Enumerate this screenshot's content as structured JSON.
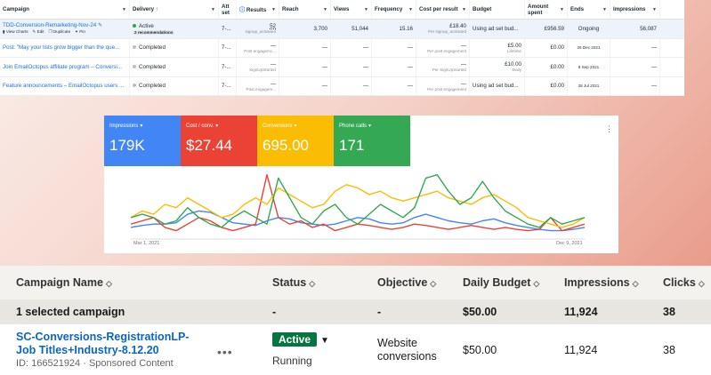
{
  "fb": {
    "headers": {
      "campaign": "Campaign",
      "delivery": "Delivery",
      "delivery_sort": "↑",
      "attribution": "Att set",
      "results": "Results",
      "reach": "Reach",
      "views": "Views",
      "frequency": "Frequency",
      "cost_per_result": "Cost per result",
      "budget": "Budget",
      "amount_spent": "Amount spent",
      "ends": "Ends",
      "impressions": "Impressions"
    },
    "rows": [
      {
        "name": "TDD-Conversion-Remarketing-Nov-24",
        "actions": [
          "View Charts",
          "Edit",
          "Duplicate",
          "Pin"
        ],
        "delivery": "Active",
        "recommendation": "2 recommendations",
        "attribution": "7-...",
        "results": "52",
        "results_sub": "signup_activated",
        "reach": "3,700",
        "views": "51,044",
        "frequency": "15.16",
        "cpr": "£18.40",
        "cpr_sub": "Per signup_activated",
        "budget": "Using ad set bud...",
        "budget_sub": "",
        "spent": "£956.59",
        "ends": "Ongoing",
        "impressions": "56,087"
      },
      {
        "name": "Post: \"May your lists grow bigger than the que...",
        "delivery": "Completed",
        "attribution": "7-...",
        "results": "—",
        "results_sub": "Post engagemc...",
        "reach": "—",
        "views": "—",
        "frequency": "—",
        "cpr": "—",
        "cpr_sub": "Per post engagement",
        "budget": "£5.00",
        "budget_sub": "Lifetime",
        "spent": "£0.00",
        "ends": "26 Dec 2021",
        "impressions": "—"
      },
      {
        "name": "Join EmailOctopus affiliate program – Conversi...",
        "delivery": "Completed",
        "attribution": "7-...",
        "results": "—",
        "results_sub": "SignUpStarted",
        "reach": "—",
        "views": "—",
        "frequency": "—",
        "cpr": "—",
        "cpr_sub": "Per SignUpStarted",
        "budget": "£10.00",
        "budget_sub": "Daily",
        "spent": "£0.00",
        "ends": "6 Sep 2021",
        "impressions": "—"
      },
      {
        "name": "Feature announcements – EmailOctopus users ...",
        "delivery": "Completed",
        "attribution": "7-...",
        "results": "—",
        "results_sub": "Post engagem...",
        "reach": "—",
        "views": "—",
        "frequency": "—",
        "cpr": "—",
        "cpr_sub": "Per post engagement",
        "budget": "Using ad set bud...",
        "budget_sub": "",
        "spent": "£0.00",
        "ends": "28 Jul 2021",
        "impressions": "—"
      }
    ]
  },
  "gads": {
    "tiles": [
      {
        "label": "Impressions",
        "value": "179K",
        "color": "#4285f4"
      },
      {
        "label": "Cost / conv.",
        "value": "$27.44",
        "color": "#ea4335"
      },
      {
        "label": "Conversions",
        "value": "695.00",
        "color": "#fbbc04"
      },
      {
        "label": "Phone calls",
        "value": "171",
        "color": "#34a853"
      }
    ],
    "x_start": "Mar 1, 2021",
    "x_end": "Dec 9, 2021"
  },
  "chart_data": {
    "type": "line",
    "x": [
      0,
      1,
      2,
      3,
      4,
      5,
      6,
      7,
      8,
      9,
      10,
      11,
      12,
      13,
      14,
      15,
      16,
      17,
      18,
      19,
      20,
      21,
      22,
      23,
      24,
      25,
      26,
      27,
      28,
      29,
      30,
      31,
      32,
      33,
      34,
      35,
      36,
      37,
      38,
      39,
      40
    ],
    "x_labels": {
      "start": "Mar 1, 2021",
      "end": "Dec 9, 2021"
    },
    "series": [
      {
        "name": "Impressions",
        "color": "#4285f4",
        "values": [
          0.15,
          0.18,
          0.2,
          0.2,
          0.22,
          0.35,
          0.4,
          0.38,
          0.3,
          0.22,
          0.2,
          0.18,
          0.25,
          0.3,
          0.28,
          0.22,
          0.2,
          0.18,
          0.2,
          0.25,
          0.3,
          0.28,
          0.22,
          0.2,
          0.22,
          0.3,
          0.35,
          0.3,
          0.25,
          0.22,
          0.2,
          0.25,
          0.28,
          0.22,
          0.18,
          0.15,
          0.12,
          0.1,
          0.1,
          0.12,
          0.15
        ]
      },
      {
        "name": "Cost / conv.",
        "color": "#ea4335",
        "values": [
          0.2,
          0.25,
          0.3,
          0.15,
          0.1,
          0.2,
          0.3,
          0.25,
          0.15,
          0.1,
          0.15,
          0.2,
          0.95,
          0.3,
          0.2,
          0.25,
          0.15,
          0.2,
          0.1,
          0.15,
          0.2,
          0.18,
          0.15,
          0.12,
          0.15,
          0.2,
          0.18,
          0.15,
          0.12,
          0.15,
          0.18,
          0.15,
          0.12,
          0.15,
          0.12,
          0.1,
          0.12,
          0.3,
          0.1,
          0.15,
          0.2
        ]
      },
      {
        "name": "Conversions",
        "color": "#fbbc04",
        "values": [
          0.3,
          0.4,
          0.35,
          0.5,
          0.45,
          0.6,
          0.5,
          0.4,
          0.3,
          0.35,
          0.5,
          0.6,
          0.5,
          0.75,
          0.65,
          0.55,
          0.45,
          0.5,
          0.7,
          0.8,
          0.75,
          0.65,
          0.7,
          0.6,
          0.55,
          0.6,
          0.65,
          0.7,
          0.6,
          0.55,
          0.5,
          0.6,
          0.65,
          0.55,
          0.45,
          0.3,
          0.25,
          0.2,
          0.15,
          0.2,
          0.3
        ]
      },
      {
        "name": "Phone calls",
        "color": "#34a853",
        "values": [
          0.3,
          0.35,
          0.3,
          0.2,
          0.25,
          0.45,
          0.3,
          0.2,
          0.15,
          0.3,
          0.4,
          0.3,
          0.2,
          0.9,
          0.6,
          0.3,
          0.2,
          0.4,
          0.5,
          0.3,
          0.2,
          0.35,
          0.5,
          0.4,
          0.3,
          0.45,
          0.9,
          0.95,
          0.7,
          0.5,
          0.6,
          0.85,
          0.6,
          0.4,
          0.3,
          0.2,
          0.15,
          0.3,
          0.2,
          0.25,
          0.3
        ]
      }
    ]
  },
  "li": {
    "headers": {
      "name": "Campaign Name",
      "status": "Status",
      "objective": "Objective",
      "budget": "Daily Budget",
      "impressions": "Impressions",
      "clicks": "Clicks"
    },
    "selected": {
      "label": "1 selected campaign",
      "status": "-",
      "objective": "-",
      "budget": "$50.00",
      "impressions": "11,924",
      "clicks": "38"
    },
    "row": {
      "name": "SC-Conversions-RegistrationLP-Job Titles+Industry-8.12.20",
      "id": "ID: 166521924 · Sponsored Content",
      "more": "•••",
      "status_badge": "Active",
      "status_sub": "Running",
      "objective": "Website conversions",
      "budget": "$50.00",
      "impressions": "11,924",
      "clicks": "38"
    }
  }
}
